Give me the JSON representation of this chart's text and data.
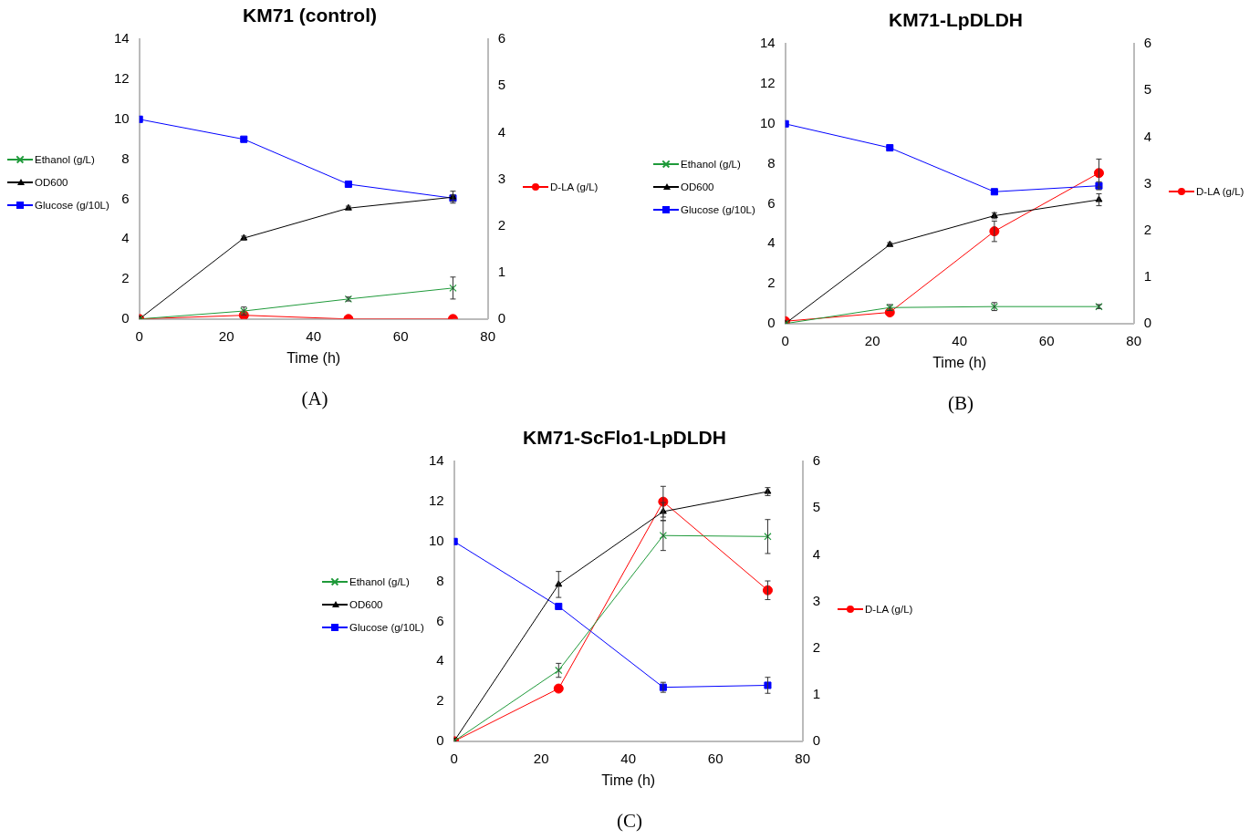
{
  "chart_data": [
    {
      "type": "line",
      "title": "KM71 (control)",
      "xlabel": "Time (h)",
      "x": [
        0,
        24,
        48,
        72
      ],
      "xlim": [
        0,
        80
      ],
      "xticks": [
        0,
        20,
        40,
        60,
        80
      ],
      "ylim": [
        0,
        14
      ],
      "yticks": [
        0,
        2,
        4,
        6,
        8,
        10,
        12,
        14
      ],
      "y2lim": [
        0,
        6
      ],
      "y2ticks": [
        0,
        1,
        2,
        3,
        4,
        5,
        6
      ],
      "grid": false,
      "legend": "left",
      "annotations": [
        "(A)"
      ],
      "series": [
        {
          "name": "Ethanol (g/L)",
          "color": "#1f9a3a",
          "marker": "cross",
          "values": [
            0,
            0.4,
            1.0,
            1.55
          ],
          "errors": [
            null,
            0.2,
            0.1,
            0.55
          ]
        },
        {
          "name": "OD600",
          "color": "#000000",
          "marker": "triangle",
          "values": [
            0,
            4.05,
            5.55,
            6.1
          ],
          "errors": [
            null,
            0.1,
            0.1,
            0.3
          ]
        },
        {
          "name": "Glucose (g/10L)",
          "color": "#0000ff",
          "marker": "square",
          "values": [
            10,
            9,
            6.75,
            6.05
          ],
          "errors": [
            null,
            null,
            null,
            0.15
          ]
        },
        {
          "name": "D-LA (g/L)",
          "color": "#ff0000",
          "marker": "circle",
          "axis": "y2",
          "values": [
            0,
            0.08,
            0,
            0
          ]
        }
      ]
    },
    {
      "type": "line",
      "title": "KM71-LpDLDH",
      "xlabel": "Time (h)",
      "x": [
        0,
        24,
        48,
        72
      ],
      "xlim": [
        0,
        80
      ],
      "xticks": [
        0,
        20,
        40,
        60,
        80
      ],
      "ylim": [
        0,
        14
      ],
      "yticks": [
        0,
        2,
        4,
        6,
        8,
        10,
        12,
        14
      ],
      "y2lim": [
        0,
        6
      ],
      "y2ticks": [
        0,
        1,
        2,
        3,
        4,
        5,
        6
      ],
      "grid": false,
      "legend": "left",
      "annotations": [
        "(B)"
      ],
      "series": [
        {
          "name": "Ethanol (g/L)",
          "color": "#1f9a3a",
          "marker": "cross",
          "values": [
            0,
            0.8,
            0.85,
            0.85
          ],
          "errors": [
            null,
            0.15,
            0.2,
            0.1
          ]
        },
        {
          "name": "OD600",
          "color": "#000000",
          "marker": "triangle",
          "values": [
            0,
            3.95,
            5.4,
            6.2
          ],
          "errors": [
            null,
            0.1,
            0.15,
            0.3
          ]
        },
        {
          "name": "Glucose (g/10L)",
          "color": "#0000ff",
          "marker": "square",
          "values": [
            10,
            8.8,
            6.6,
            6.9
          ],
          "errors": [
            null,
            null,
            null,
            0.2
          ]
        },
        {
          "name": "D-LA (g/L)",
          "color": "#ff0000",
          "marker": "circle",
          "axis": "y2",
          "values": [
            0.05,
            0.24,
            1.98,
            3.23
          ],
          "errors": [
            null,
            null,
            0.22,
            0.3
          ]
        }
      ]
    },
    {
      "type": "line",
      "title": "KM71-ScFlo1-LpDLDH",
      "xlabel": "Time (h)",
      "x": [
        0,
        24,
        48,
        72
      ],
      "xlim": [
        0,
        80
      ],
      "xticks": [
        0,
        20,
        40,
        60,
        80
      ],
      "ylim": [
        0,
        14
      ],
      "yticks": [
        0,
        2,
        4,
        6,
        8,
        10,
        12,
        14
      ],
      "y2lim": [
        0,
        6
      ],
      "y2ticks": [
        0,
        1,
        2,
        3,
        4,
        5,
        6
      ],
      "grid": false,
      "legend": "left",
      "annotations": [
        "(C)"
      ],
      "series": [
        {
          "name": "Ethanol (g/L)",
          "color": "#1f9a3a",
          "marker": "cross",
          "values": [
            0,
            3.55,
            10.3,
            10.25
          ],
          "errors": [
            null,
            0.35,
            0.75,
            0.85
          ]
        },
        {
          "name": "OD600",
          "color": "#000000",
          "marker": "triangle",
          "values": [
            0,
            7.85,
            11.5,
            12.5
          ],
          "errors": [
            null,
            0.65,
            0.45,
            0.2
          ]
        },
        {
          "name": "Glucose (g/10L)",
          "color": "#0000ff",
          "marker": "square",
          "values": [
            10,
            6.75,
            2.7,
            2.8
          ],
          "errors": [
            null,
            null,
            0.25,
            0.4
          ]
        },
        {
          "name": "D-LA (g/L)",
          "color": "#ff0000",
          "marker": "circle",
          "axis": "y2",
          "values": [
            0,
            1.13,
            5.14,
            3.24
          ],
          "errors": [
            null,
            null,
            0.33,
            0.2
          ]
        }
      ]
    }
  ]
}
